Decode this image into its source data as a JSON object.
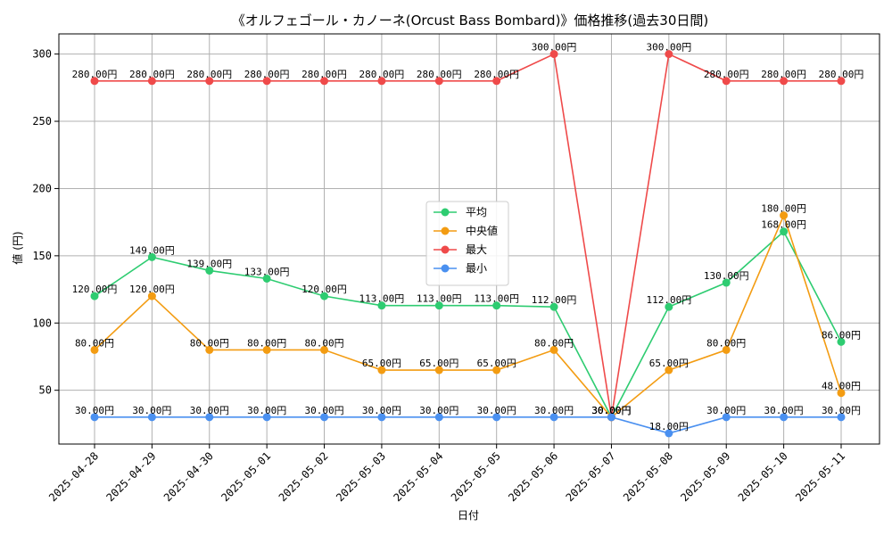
{
  "chart_data": {
    "type": "line",
    "title": "《オルフェゴール・カノーネ(Orcust Bass Bombard)》価格推移(過去30日間)",
    "xlabel": "日付",
    "ylabel": "値 (円)",
    "ylim": [
      10,
      315
    ],
    "yticks": [
      50,
      100,
      150,
      200,
      250,
      300
    ],
    "grid": true,
    "legend_position": "center",
    "value_suffix": "円",
    "categories": [
      "2025-04-28",
      "2025-04-29",
      "2025-04-30",
      "2025-05-01",
      "2025-05-02",
      "2025-05-03",
      "2025-05-04",
      "2025-05-05",
      "2025-05-06",
      "2025-05-07",
      "2025-05-08",
      "2025-05-09",
      "2025-05-10",
      "2025-05-11"
    ],
    "series": [
      {
        "name": "平均",
        "color": "#2ecc71",
        "values": [
          120,
          149,
          139,
          133,
          120,
          113,
          113,
          113,
          112,
          30,
          112,
          130,
          168,
          86
        ]
      },
      {
        "name": "中央値",
        "color": "#f39c12",
        "values": [
          80,
          120,
          80,
          80,
          80,
          65,
          65,
          65,
          80,
          30,
          65,
          80,
          180,
          48
        ]
      },
      {
        "name": "最大",
        "color": "#ef4a4a",
        "values": [
          280,
          280,
          280,
          280,
          280,
          280,
          280,
          280,
          300,
          30,
          300,
          280,
          280,
          280
        ]
      },
      {
        "name": "最小",
        "color": "#4a90f0",
        "values": [
          30,
          30,
          30,
          30,
          30,
          30,
          30,
          30,
          30,
          30,
          18,
          30,
          30,
          30
        ]
      }
    ]
  }
}
